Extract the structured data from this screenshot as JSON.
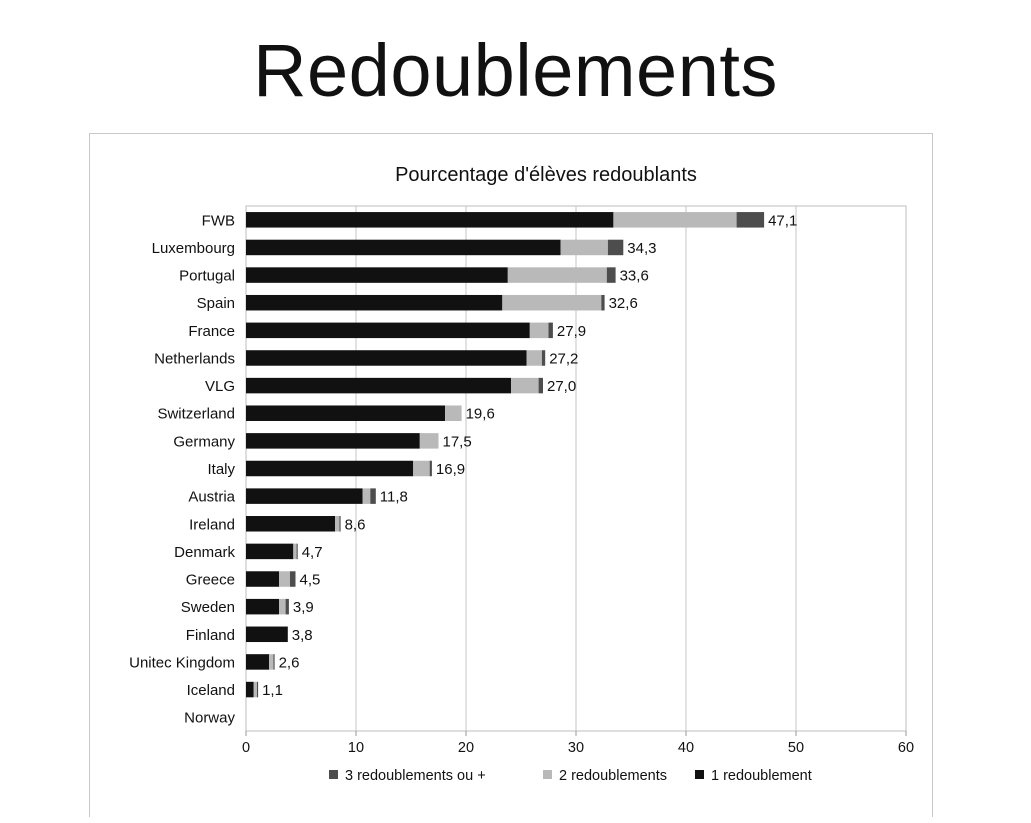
{
  "page": {
    "title": "Redoublements"
  },
  "chart_data": {
    "type": "bar",
    "orientation": "horizontal",
    "stacked": true,
    "title": "Pourcentage d'élèves redoublants",
    "xlabel": "",
    "ylabel": "",
    "xlim": [
      0,
      60
    ],
    "xticks": [
      0,
      10,
      20,
      30,
      40,
      50,
      60
    ],
    "grid": true,
    "legend_position": "bottom",
    "categories": [
      "FWB",
      "Luxembourg",
      "Portugal",
      "Spain",
      "France",
      "Netherlands",
      "VLG",
      "Switzerland",
      "Germany",
      "Italy",
      "Austria",
      "Ireland",
      "Denmark",
      "Greece",
      "Sweden",
      "Finland",
      "Unitec Kingdom",
      "Iceland",
      "Norway"
    ],
    "series": [
      {
        "name": "1 redoublement",
        "color": "#111111",
        "values": [
          33.4,
          28.6,
          23.8,
          23.3,
          25.8,
          25.5,
          24.1,
          18.1,
          15.8,
          15.2,
          10.6,
          8.1,
          4.3,
          3.0,
          3.0,
          3.8,
          2.1,
          0.7,
          0
        ]
      },
      {
        "name": "2 redoublements",
        "color": "#b9b9b9",
        "values": [
          11.2,
          4.3,
          9.0,
          9.0,
          1.7,
          1.4,
          2.5,
          1.5,
          1.7,
          1.5,
          0.7,
          0.4,
          0.3,
          1.0,
          0.6,
          0.0,
          0.4,
          0.3,
          0
        ]
      },
      {
        "name": "3 redoublements ou +",
        "color": "#4d4d4d",
        "values": [
          2.5,
          1.4,
          0.8,
          0.3,
          0.4,
          0.3,
          0.4,
          0.0,
          0.0,
          0.2,
          0.5,
          0.1,
          0.1,
          0.5,
          0.3,
          0.0,
          0.1,
          0.1,
          0
        ]
      }
    ],
    "totals": [
      "47,1",
      "34,3",
      "33,6",
      "32,6",
      "27,9",
      "27,2",
      "27,0",
      "19,6",
      "17,5",
      "16,9",
      "11,8",
      "8,6",
      "4,7",
      "4,5",
      "3,9",
      "3,8",
      "2,6",
      "1,1",
      ""
    ],
    "legend_order": [
      "3 redoublements ou +",
      "2 redoublements",
      "1 redoublement"
    ]
  }
}
